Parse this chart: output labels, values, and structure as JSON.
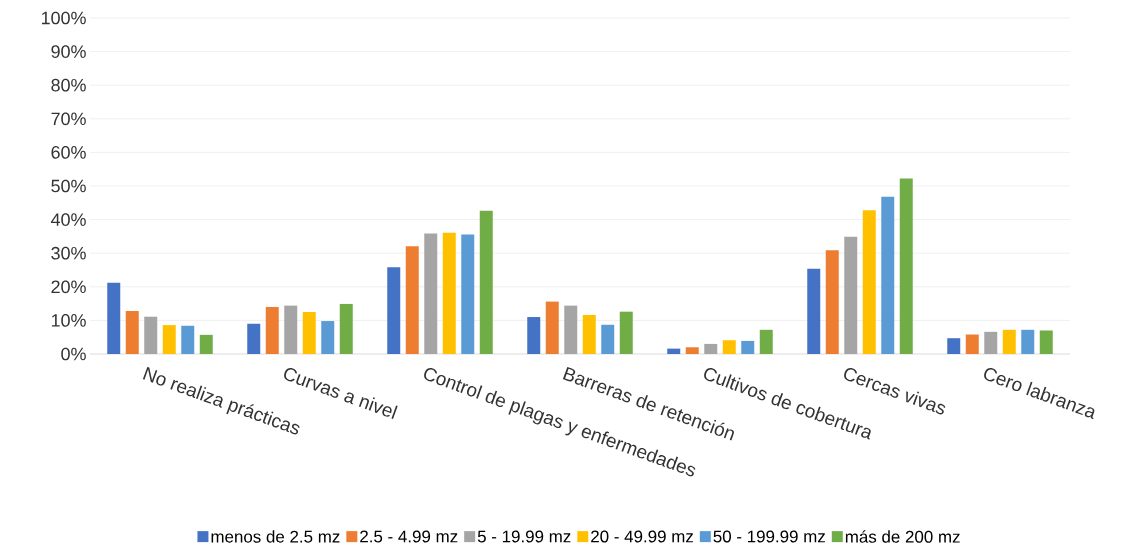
{
  "chart_data": {
    "type": "bar",
    "categories": [
      "No realiza prácticas",
      "Curvas a nivel",
      "Control de plagas y enfermedades",
      "Barreras de retención",
      "Cultivos de cobertura",
      "Cercas vivas",
      "Cero labranza"
    ],
    "series": [
      {
        "name": "menos de 2.5 mz",
        "color": "#4472c4",
        "values": [
          21.2,
          9.0,
          25.8,
          11.0,
          1.6,
          25.4,
          4.7
        ]
      },
      {
        "name": "2.5 - 4.99 mz",
        "color": "#ed7d31",
        "values": [
          12.8,
          14.0,
          32.1,
          15.6,
          2.0,
          30.9,
          5.8
        ]
      },
      {
        "name": "5 - 19.99 mz",
        "color": "#a5a5a5",
        "values": [
          11.1,
          14.4,
          35.9,
          14.4,
          3.0,
          34.9,
          6.6
        ]
      },
      {
        "name": "20 - 49.99 mz",
        "color": "#ffc000",
        "values": [
          8.6,
          12.5,
          36.1,
          11.6,
          4.1,
          42.8,
          7.2
        ]
      },
      {
        "name": "50 - 199.99 mz",
        "color": "#5b9bd5",
        "values": [
          8.4,
          9.8,
          35.6,
          8.7,
          3.9,
          46.8,
          7.2
        ]
      },
      {
        "name": "más de 200 mz",
        "color": "#70ad47",
        "values": [
          5.7,
          14.9,
          42.6,
          12.6,
          7.2,
          52.2,
          7.0
        ]
      }
    ],
    "ylim": [
      0,
      100
    ],
    "yticks": [
      {
        "value": 0,
        "label": "0%"
      },
      {
        "value": 10,
        "label": "10%"
      },
      {
        "value": 20,
        "label": "20%"
      },
      {
        "value": 30,
        "label": "30%"
      },
      {
        "value": 40,
        "label": "40%"
      },
      {
        "value": 50,
        "label": "50%"
      },
      {
        "value": 60,
        "label": "60%"
      },
      {
        "value": 70,
        "label": "70%"
      },
      {
        "value": 80,
        "label": "80%"
      },
      {
        "value": 90,
        "label": "90%"
      },
      {
        "value": 100,
        "label": "100%"
      }
    ],
    "grid": "y",
    "legend": "bottom"
  }
}
